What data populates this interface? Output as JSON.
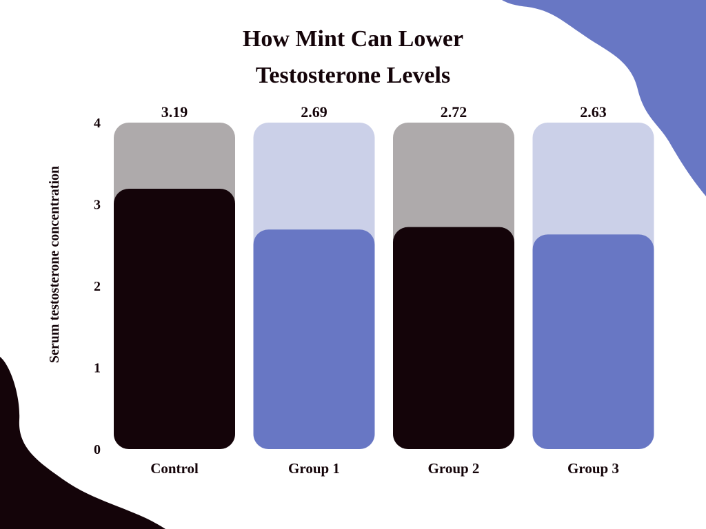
{
  "title_line1": "How Mint Can Lower",
  "title_line2": "Testosterone Levels",
  "colors": {
    "dark": "#140409",
    "blue": "#6877c4",
    "gray_track": "#aeaaab",
    "blue_track": "#cbd0e8",
    "background": "#ffffff"
  },
  "chart_data": {
    "type": "bar",
    "title": "How Mint Can Lower Testosterone Levels",
    "categories": [
      "Control",
      "Group 1",
      "Group 2",
      "Group 3"
    ],
    "values": [
      3.19,
      2.69,
      2.72,
      2.63
    ],
    "value_labels": [
      "3.19",
      "2.69",
      "2.72",
      "2.63"
    ],
    "xlabel": "",
    "ylabel": "Serum testosterone concentration",
    "ylim": [
      0,
      4
    ],
    "yticks": [
      "0",
      "1",
      "2",
      "3",
      "4"
    ],
    "grid": false,
    "legend": "none",
    "bar_colors": [
      "#140409",
      "#6877c4",
      "#140409",
      "#6877c4"
    ],
    "track_colors": [
      "#aeaaab",
      "#cbd0e8",
      "#aeaaab",
      "#cbd0e8"
    ]
  }
}
